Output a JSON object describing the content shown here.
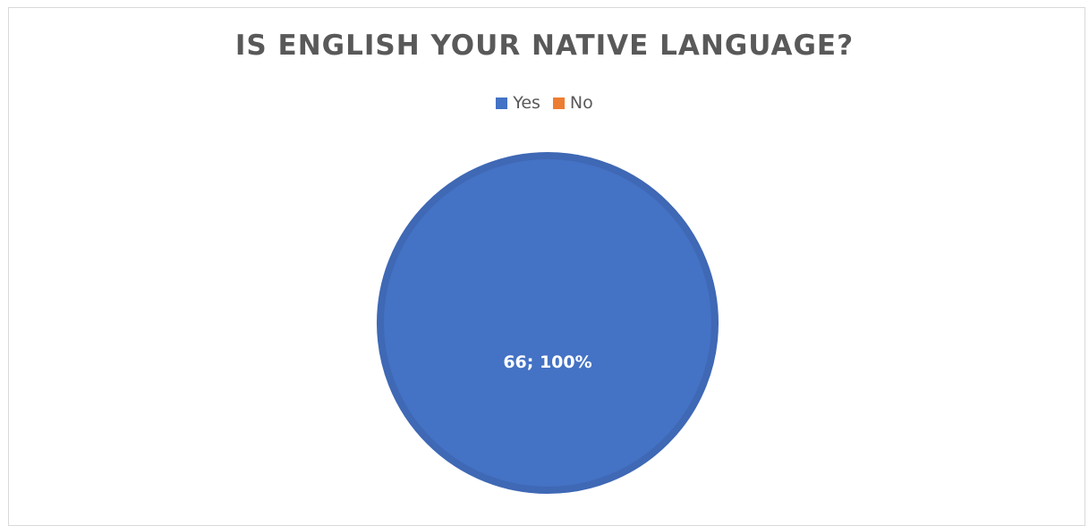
{
  "chart_data": {
    "type": "pie",
    "title": "IS ENGLISH YOUR NATIVE LANGUAGE?",
    "categories": [
      "Yes",
      "No"
    ],
    "values": [
      66,
      0
    ],
    "percentages": [
      "100%",
      "0%"
    ],
    "data_labels": [
      "66; 100%"
    ],
    "colors": [
      "#4472C4",
      "#ED7D31"
    ],
    "legend": {
      "placement": "top",
      "entries": [
        "Yes",
        "No"
      ]
    }
  }
}
